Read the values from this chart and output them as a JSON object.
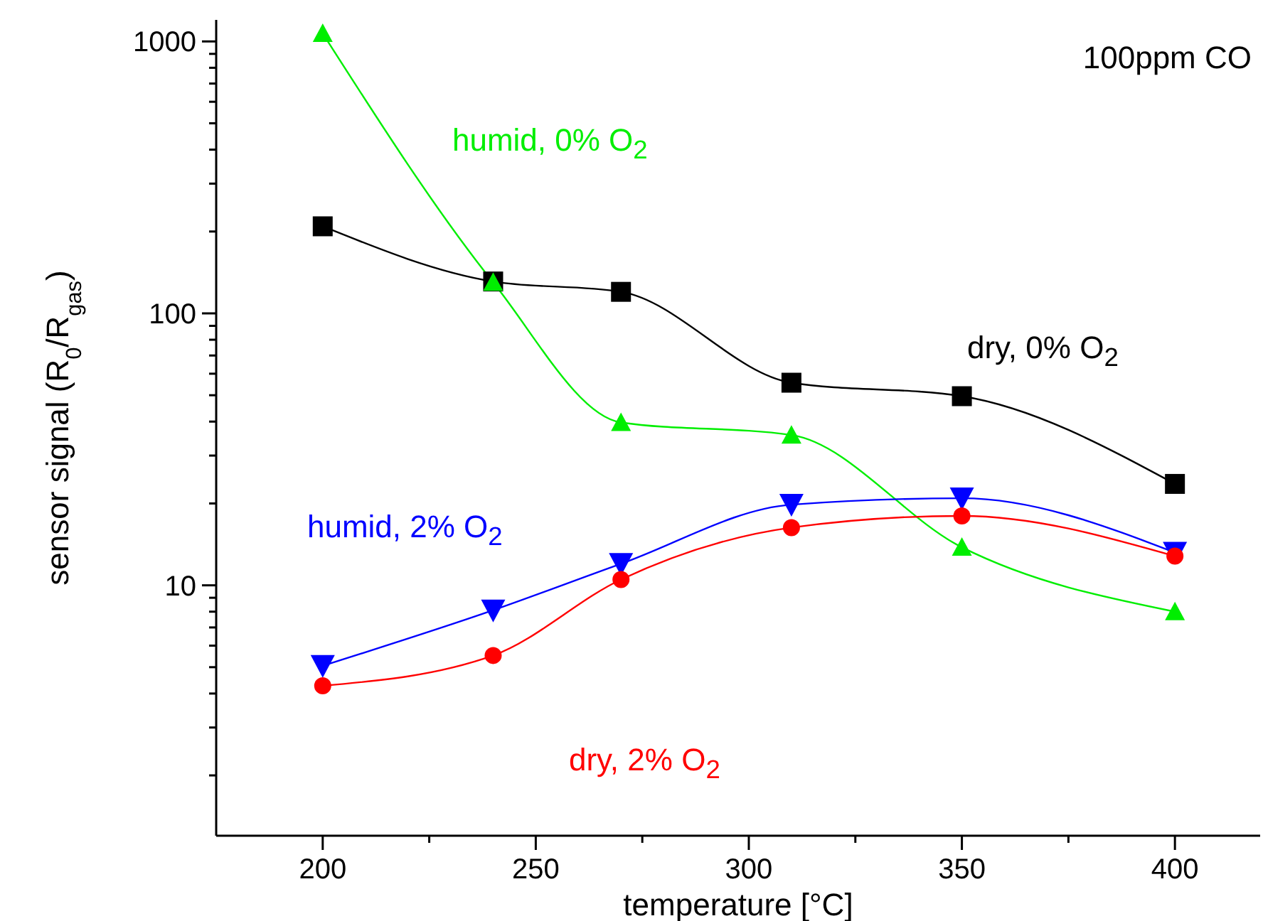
{
  "chart_data": {
    "type": "line",
    "xlabel": "temperature [°C]",
    "ylabel": "sensor signal (R$_{0}$/R$_{gas}$)",
    "annotations": [
      "100ppm CO"
    ],
    "x": [
      200,
      240,
      270,
      310,
      350,
      400
    ],
    "series": [
      {
        "name": "dry, 0% O$_{2}$",
        "color": "#000000",
        "marker": "square",
        "values": [
          209,
          131,
          120,
          55.6,
          49.6,
          23.6
        ]
      },
      {
        "name": "humid, 0% O$_{2}$",
        "color": "#00ee00",
        "marker": "triangle",
        "values": [
          1070,
          130,
          39.7,
          35.7,
          13.8,
          8.0
        ]
      },
      {
        "name": "humid, 2% O$_{2}$",
        "color": "#0000ff",
        "marker": "triangle-down",
        "values": [
          5.06,
          8.1,
          12.0,
          19.8,
          20.9,
          13.2
        ]
      },
      {
        "name": "dry, 2% O$_{2}$",
        "color": "#ff0000",
        "marker": "circle",
        "values": [
          4.27,
          5.52,
          10.5,
          16.3,
          18.0,
          12.8
        ]
      }
    ],
    "log": "y",
    "xlim": [
      175,
      420
    ],
    "ylim": [
      1.2,
      1200
    ],
    "xticks": [
      200,
      {
        "value": 225,
        "label": null
      },
      250,
      {
        "value": 275,
        "label": null
      },
      300,
      {
        "value": 325,
        "label": null
      },
      350,
      {
        "value": 375,
        "label": null
      },
      400
    ],
    "yticks": [
      {
        "value": 2,
        "label": null
      },
      {
        "value": 3,
        "label": null
      },
      {
        "value": 4,
        "label": null
      },
      {
        "value": 5,
        "label": null
      },
      {
        "value": 6,
        "label": null
      },
      {
        "value": 7,
        "label": null
      },
      {
        "value": 8,
        "label": null
      },
      {
        "value": 9,
        "label": null
      },
      10,
      {
        "value": 20,
        "label": null
      },
      {
        "value": 30,
        "label": null
      },
      {
        "value": 40,
        "label": null
      },
      {
        "value": 50,
        "label": null
      },
      {
        "value": 60,
        "label": null
      },
      {
        "value": 70,
        "label": null
      },
      {
        "value": 80,
        "label": null
      },
      {
        "value": 90,
        "label": null
      },
      100,
      {
        "value": 200,
        "label": null
      },
      {
        "value": 300,
        "label": null
      },
      {
        "value": 400,
        "label": null
      },
      {
        "value": 500,
        "label": null
      },
      {
        "value": 600,
        "label": null
      },
      {
        "value": 700,
        "label": null
      },
      {
        "value": 800,
        "label": null
      },
      {
        "value": 900,
        "label": null
      },
      1000
    ],
    "grid": false,
    "line_style": "solid"
  }
}
